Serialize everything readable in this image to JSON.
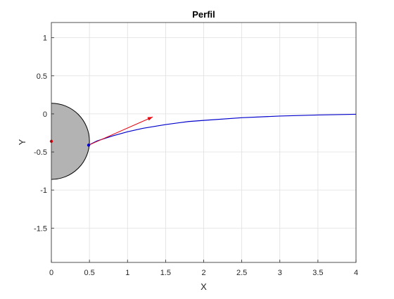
{
  "chart_data": {
    "type": "line",
    "title": "Perfil",
    "xlabel": "X",
    "ylabel": "Y",
    "xlim": [
      0,
      4
    ],
    "ylim": [
      -1.95,
      1.2
    ],
    "xticks": [
      0,
      0.5,
      1,
      1.5,
      2,
      2.5,
      3,
      3.5,
      4
    ],
    "xtick_labels": [
      "0",
      "0.5",
      "1",
      "1.5",
      "2",
      "2.5",
      "3",
      "3.5",
      "4"
    ],
    "yticks": [
      -1.5,
      -1,
      -0.5,
      0,
      0.5,
      1
    ],
    "ytick_labels": [
      "-1.5",
      "-1",
      "-0.5",
      "0",
      "0.5",
      "1"
    ],
    "grid": true,
    "circle": {
      "center": [
        0,
        -0.36
      ],
      "radius": 0.5,
      "fill": "#b3b3b3",
      "edge": "#000000"
    },
    "center_point": {
      "x": 0,
      "y": -0.36,
      "color": "#e8000b"
    },
    "contact_point": {
      "x": 0.49,
      "y": -0.41,
      "color": "#0000cc"
    },
    "arrow": {
      "from": [
        0.49,
        -0.41
      ],
      "to": [
        1.33,
        -0.04
      ],
      "color": "#e8000b"
    },
    "series": [
      {
        "color": "#0000cc",
        "x": [
          0.49,
          0.6,
          0.8,
          1.0,
          1.2,
          1.5,
          1.8,
          2.0,
          2.5,
          3.0,
          3.5,
          4.0
        ],
        "y": [
          -0.41,
          -0.355,
          -0.29,
          -0.235,
          -0.19,
          -0.14,
          -0.1,
          -0.085,
          -0.05,
          -0.028,
          -0.014,
          -0.005
        ]
      }
    ]
  }
}
